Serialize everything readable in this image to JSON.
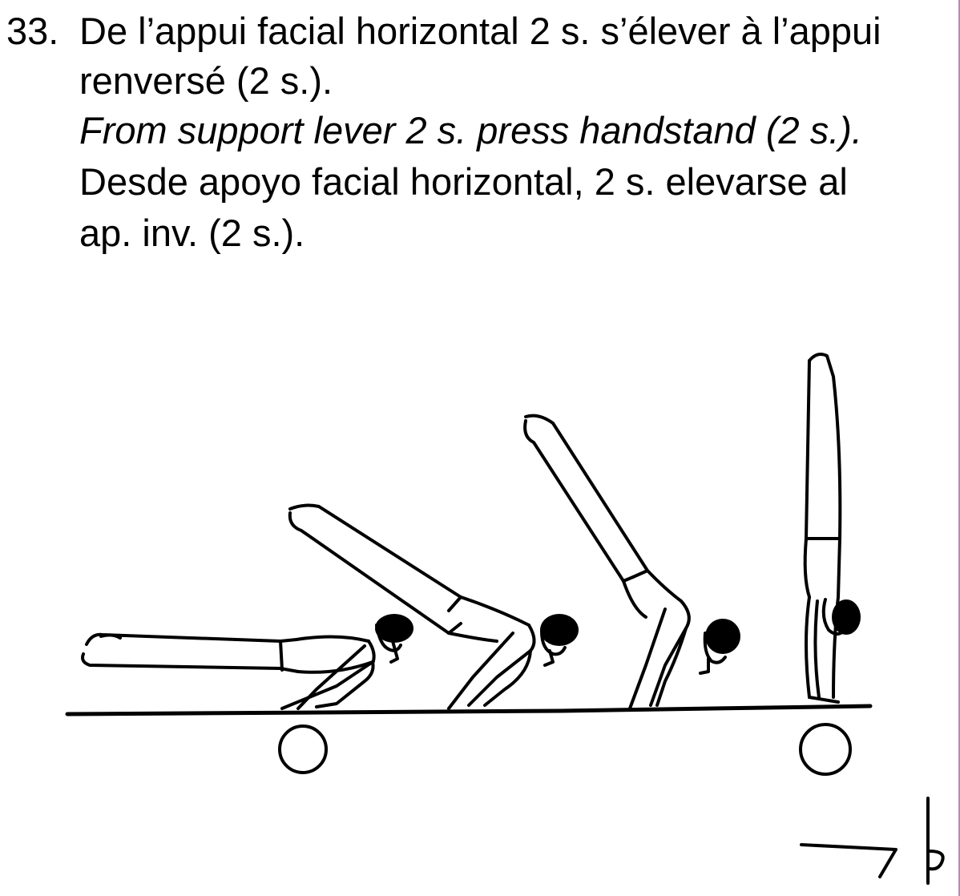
{
  "element": {
    "number": "33.",
    "french_line1": "De l’appui facial horizontal 2 s. s’élever à l’appui",
    "french_line2": "renversé (2 s.).",
    "english": "From support lever 2 s. press handstand (2 s.).",
    "spanish_line1": "Desde apoyo facial horizontal, 2 s. elevarse al",
    "spanish_line2": "ap. inv. (2 s.)."
  },
  "figure": {
    "icons": [
      "gymnast-support-lever",
      "gymnast-press-phase-1",
      "gymnast-press-phase-2",
      "gymnast-handstand",
      "hold-circle-start",
      "hold-circle-end",
      "direction-arrow",
      "value-mark"
    ]
  }
}
